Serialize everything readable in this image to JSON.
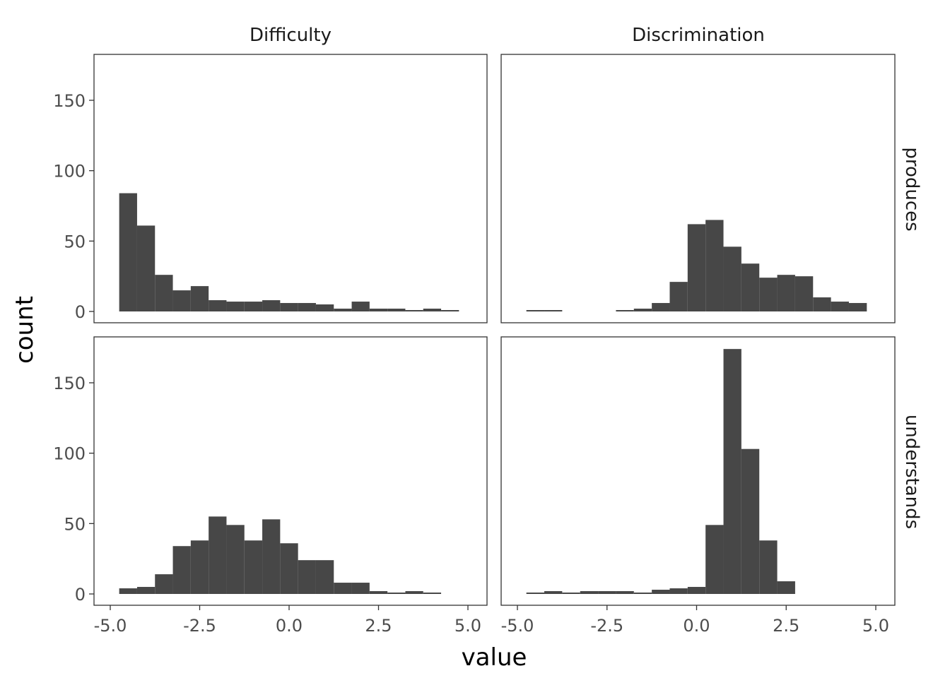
{
  "chart_data": {
    "type": "bar",
    "xlabel": "value",
    "ylabel": "count",
    "xlim": [
      -5.0,
      5.0
    ],
    "ylim": [
      0,
      180
    ],
    "xticks": [
      -5.0,
      -2.5,
      0.0,
      2.5,
      5.0
    ],
    "xtick_labels": [
      "-5.0",
      "-2.5",
      "0.0",
      "2.5",
      "5.0"
    ],
    "yticks": [
      0,
      50,
      100,
      150
    ],
    "ytick_labels": [
      "0",
      "50",
      "100",
      "150"
    ],
    "grid": false,
    "bin_width": 0.5,
    "columns": [
      "Difficulty",
      "Discrimination"
    ],
    "rows": [
      "produces",
      "understands"
    ],
    "panels": [
      {
        "column": "Difficulty",
        "row": "produces",
        "bin_centers": [
          -4.5,
          -4.0,
          -3.5,
          -3.0,
          -2.5,
          -2.0,
          -1.5,
          -1.0,
          -0.5,
          0.0,
          0.5,
          1.0,
          1.5,
          2.0,
          2.5,
          3.0,
          3.5,
          4.0,
          4.5
        ],
        "values": [
          84,
          61,
          26,
          15,
          18,
          8,
          7,
          7,
          8,
          6,
          6,
          5,
          2,
          7,
          2,
          2,
          1,
          2,
          1
        ]
      },
      {
        "column": "Discrimination",
        "row": "produces",
        "bin_centers": [
          -4.5,
          -4.0,
          -2.0,
          -1.5,
          -1.0,
          -0.5,
          0.0,
          0.5,
          1.0,
          1.5,
          2.0,
          2.5,
          3.0,
          3.5,
          4.0,
          4.5
        ],
        "values": [
          1,
          1,
          1,
          2,
          6,
          21,
          62,
          65,
          46,
          34,
          24,
          26,
          25,
          10,
          7,
          6
        ]
      },
      {
        "column": "Difficulty",
        "row": "understands",
        "bin_centers": [
          -4.5,
          -4.0,
          -3.5,
          -3.0,
          -2.5,
          -2.0,
          -1.5,
          -1.0,
          -0.5,
          0.0,
          0.5,
          1.0,
          1.5,
          2.0,
          2.5,
          3.0,
          3.5,
          4.0
        ],
        "values": [
          4,
          5,
          14,
          34,
          38,
          55,
          49,
          38,
          53,
          36,
          24,
          24,
          8,
          8,
          2,
          1,
          2,
          1
        ]
      },
      {
        "column": "Discrimination",
        "row": "understands",
        "bin_centers": [
          -4.5,
          -4.0,
          -3.5,
          -3.0,
          -2.5,
          -2.0,
          -1.5,
          -1.0,
          -0.5,
          0.0,
          0.5,
          1.0,
          1.5,
          2.0,
          2.5
        ],
        "values": [
          1,
          2,
          1,
          2,
          2,
          2,
          1,
          3,
          4,
          5,
          49,
          174,
          103,
          38,
          9
        ]
      }
    ]
  }
}
